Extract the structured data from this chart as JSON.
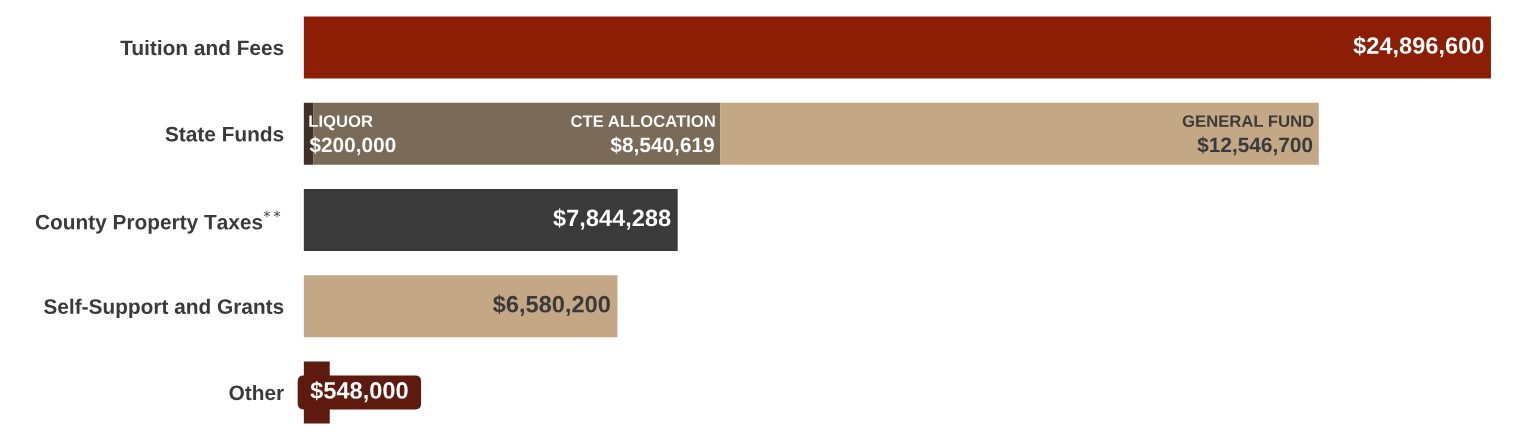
{
  "chart_data": {
    "type": "bar",
    "orientation": "horizontal",
    "stacked": true,
    "grid": false,
    "legend": false,
    "categories": [
      "Tuition and Fees",
      "State Funds",
      "County Property Taxes$^{**}$",
      "Self-Support and Grants",
      "Other"
    ],
    "series": [
      {
        "colors": [
          "#8b1e05",
          "#3e302a",
          "#3a3a3a",
          "#c4a886",
          "#5e1a0e"
        ],
        "values": [
          24896600,
          null,
          7844288,
          6580200,
          548000
        ],
        "value_labels": [
          "$24,896,600",
          null,
          "$7,844,288",
          "$6,580,200",
          "$548,000"
        ]
      },
      {
        "name": "LIQUOR",
        "color": "#3e302a",
        "values": [
          null,
          200000,
          null,
          null,
          null
        ],
        "value_labels": [
          null,
          "$200,000",
          null,
          null,
          null
        ]
      },
      {
        "name": "CTE ALLOCATION",
        "color": "#7a6a58",
        "values": [
          null,
          8540619,
          null,
          null,
          null
        ],
        "value_labels": [
          null,
          "$8,540,619",
          null,
          null,
          null
        ]
      },
      {
        "name": "GENERAL FUND",
        "color": "#c4a886",
        "values": [
          null,
          12546700,
          null,
          null,
          null
        ],
        "value_labels": [
          null,
          "$12,546,700",
          null,
          null,
          null
        ]
      }
    ]
  }
}
